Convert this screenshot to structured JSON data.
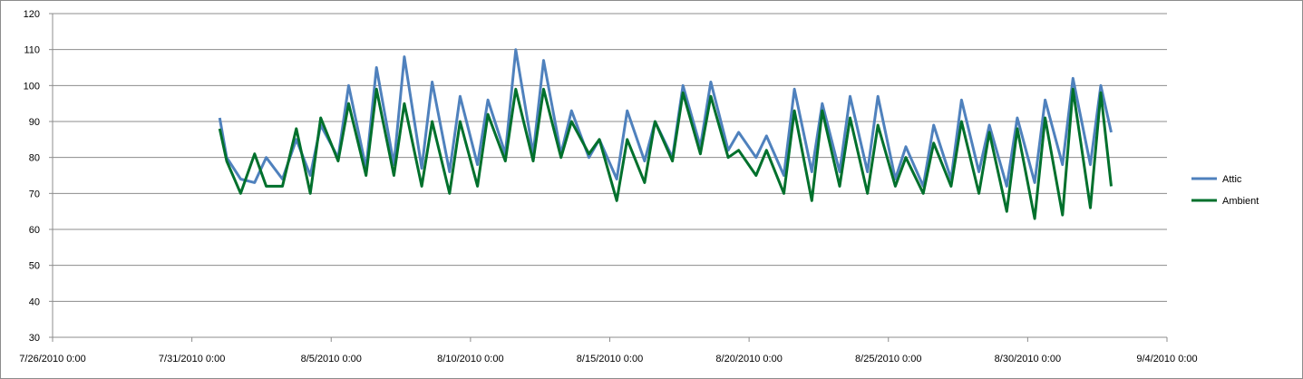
{
  "chart_data": {
    "type": "line",
    "title": "",
    "xlabel": "",
    "ylabel": "",
    "ylim": [
      30,
      120
    ],
    "yticks": [
      30,
      40,
      50,
      60,
      70,
      80,
      90,
      100,
      110,
      120
    ],
    "xticks": [
      "7/26/2010 0:00",
      "7/31/2010 0:00",
      "8/5/2010 0:00",
      "8/10/2010 0:00",
      "8/15/2010 0:00",
      "8/20/2010 0:00",
      "8/25/2010 0:00",
      "8/30/2010 0:00",
      "9/4/2010 0:00"
    ],
    "xlim": [
      "7/26/2010 0:00",
      "9/4/2010 0:00"
    ],
    "grid": "horizontal",
    "legend_position": "right",
    "series": [
      {
        "name": "Attic",
        "color": "#4f81bd",
        "points": [
          [
            "8/1/2010 0:00",
            91
          ],
          [
            "8/1/2010 6:00",
            80
          ],
          [
            "8/1/2010 18:00",
            74
          ],
          [
            "8/2/2010 6:00",
            73
          ],
          [
            "8/2/2010 16:00",
            80
          ],
          [
            "8/3/2010 6:00",
            74
          ],
          [
            "8/3/2010 18:00",
            85
          ],
          [
            "8/4/2010 6:00",
            75
          ],
          [
            "8/4/2010 15:00",
            89
          ],
          [
            "8/5/2010 6:00",
            80
          ],
          [
            "8/5/2010 15:00",
            100
          ],
          [
            "8/6/2010 6:00",
            77
          ],
          [
            "8/6/2010 15:00",
            105
          ],
          [
            "8/7/2010 6:00",
            78
          ],
          [
            "8/7/2010 15:00",
            108
          ],
          [
            "8/8/2010 6:00",
            77
          ],
          [
            "8/8/2010 15:00",
            101
          ],
          [
            "8/9/2010 6:00",
            76
          ],
          [
            "8/9/2010 15:00",
            97
          ],
          [
            "8/10/2010 6:00",
            78
          ],
          [
            "8/10/2010 15:00",
            96
          ],
          [
            "8/11/2010 6:00",
            81
          ],
          [
            "8/11/2010 15:00",
            110
          ],
          [
            "8/12/2010 6:00",
            81
          ],
          [
            "8/12/2010 15:00",
            107
          ],
          [
            "8/13/2010 6:00",
            81
          ],
          [
            "8/13/2010 15:00",
            93
          ],
          [
            "8/14/2010 6:00",
            80
          ],
          [
            "8/14/2010 15:00",
            85
          ],
          [
            "8/15/2010 6:00",
            74
          ],
          [
            "8/15/2010 15:00",
            93
          ],
          [
            "8/16/2010 6:00",
            79
          ],
          [
            "8/16/2010 15:00",
            90
          ],
          [
            "8/17/2010 6:00",
            80
          ],
          [
            "8/17/2010 15:00",
            100
          ],
          [
            "8/18/2010 6:00",
            83
          ],
          [
            "8/18/2010 15:00",
            101
          ],
          [
            "8/19/2010 6:00",
            82
          ],
          [
            "8/19/2010 15:00",
            87
          ],
          [
            "8/20/2010 6:00",
            80
          ],
          [
            "8/20/2010 15:00",
            86
          ],
          [
            "8/21/2010 6:00",
            75
          ],
          [
            "8/21/2010 15:00",
            99
          ],
          [
            "8/22/2010 6:00",
            76
          ],
          [
            "8/22/2010 15:00",
            95
          ],
          [
            "8/23/2010 6:00",
            76
          ],
          [
            "8/23/2010 15:00",
            97
          ],
          [
            "8/24/2010 6:00",
            76
          ],
          [
            "8/24/2010 15:00",
            97
          ],
          [
            "8/25/2010 6:00",
            74
          ],
          [
            "8/25/2010 15:00",
            83
          ],
          [
            "8/26/2010 6:00",
            72
          ],
          [
            "8/26/2010 15:00",
            89
          ],
          [
            "8/27/2010 6:00",
            74
          ],
          [
            "8/27/2010 15:00",
            96
          ],
          [
            "8/28/2010 6:00",
            76
          ],
          [
            "8/28/2010 15:00",
            89
          ],
          [
            "8/29/2010 6:00",
            72
          ],
          [
            "8/29/2010 15:00",
            91
          ],
          [
            "8/30/2010 6:00",
            73
          ],
          [
            "8/30/2010 15:00",
            96
          ],
          [
            "8/31/2010 6:00",
            78
          ],
          [
            "8/31/2010 15:00",
            102
          ],
          [
            "9/1/2010 6:00",
            78
          ],
          [
            "9/1/2010 15:00",
            100
          ],
          [
            "9/2/2010 0:00",
            87
          ]
        ]
      },
      {
        "name": "Ambient",
        "color": "#00702c",
        "points": [
          [
            "8/1/2010 0:00",
            88
          ],
          [
            "8/1/2010 6:00",
            79
          ],
          [
            "8/1/2010 18:00",
            70
          ],
          [
            "8/2/2010 6:00",
            81
          ],
          [
            "8/2/2010 16:00",
            72
          ],
          [
            "8/3/2010 6:00",
            72
          ],
          [
            "8/3/2010 18:00",
            88
          ],
          [
            "8/4/2010 6:00",
            70
          ],
          [
            "8/4/2010 15:00",
            91
          ],
          [
            "8/5/2010 6:00",
            79
          ],
          [
            "8/5/2010 15:00",
            95
          ],
          [
            "8/6/2010 6:00",
            75
          ],
          [
            "8/6/2010 15:00",
            99
          ],
          [
            "8/7/2010 6:00",
            75
          ],
          [
            "8/7/2010 15:00",
            95
          ],
          [
            "8/8/2010 6:00",
            72
          ],
          [
            "8/8/2010 15:00",
            90
          ],
          [
            "8/9/2010 6:00",
            70
          ],
          [
            "8/9/2010 15:00",
            90
          ],
          [
            "8/10/2010 6:00",
            72
          ],
          [
            "8/10/2010 15:00",
            92
          ],
          [
            "8/11/2010 6:00",
            79
          ],
          [
            "8/11/2010 15:00",
            99
          ],
          [
            "8/12/2010 6:00",
            79
          ],
          [
            "8/12/2010 15:00",
            99
          ],
          [
            "8/13/2010 6:00",
            80
          ],
          [
            "8/13/2010 15:00",
            90
          ],
          [
            "8/14/2010 6:00",
            81
          ],
          [
            "8/14/2010 15:00",
            85
          ],
          [
            "8/15/2010 6:00",
            68
          ],
          [
            "8/15/2010 15:00",
            85
          ],
          [
            "8/16/2010 6:00",
            73
          ],
          [
            "8/16/2010 15:00",
            90
          ],
          [
            "8/17/2010 6:00",
            79
          ],
          [
            "8/17/2010 15:00",
            98
          ],
          [
            "8/18/2010 6:00",
            81
          ],
          [
            "8/18/2010 15:00",
            97
          ],
          [
            "8/19/2010 6:00",
            80
          ],
          [
            "8/19/2010 15:00",
            82
          ],
          [
            "8/20/2010 6:00",
            75
          ],
          [
            "8/20/2010 15:00",
            82
          ],
          [
            "8/21/2010 6:00",
            70
          ],
          [
            "8/21/2010 15:00",
            93
          ],
          [
            "8/22/2010 6:00",
            68
          ],
          [
            "8/22/2010 15:00",
            93
          ],
          [
            "8/23/2010 6:00",
            72
          ],
          [
            "8/23/2010 15:00",
            91
          ],
          [
            "8/24/2010 6:00",
            70
          ],
          [
            "8/24/2010 15:00",
            89
          ],
          [
            "8/25/2010 6:00",
            72
          ],
          [
            "8/25/2010 15:00",
            80
          ],
          [
            "8/26/2010 6:00",
            70
          ],
          [
            "8/26/2010 15:00",
            84
          ],
          [
            "8/27/2010 6:00",
            72
          ],
          [
            "8/27/2010 15:00",
            90
          ],
          [
            "8/28/2010 6:00",
            70
          ],
          [
            "8/28/2010 15:00",
            87
          ],
          [
            "8/29/2010 6:00",
            65
          ],
          [
            "8/29/2010 15:00",
            88
          ],
          [
            "8/30/2010 6:00",
            63
          ],
          [
            "8/30/2010 15:00",
            91
          ],
          [
            "8/31/2010 6:00",
            64
          ],
          [
            "8/31/2010 15:00",
            99
          ],
          [
            "9/1/2010 6:00",
            66
          ],
          [
            "9/1/2010 15:00",
            98
          ],
          [
            "9/2/2010 0:00",
            72
          ]
        ]
      }
    ]
  }
}
